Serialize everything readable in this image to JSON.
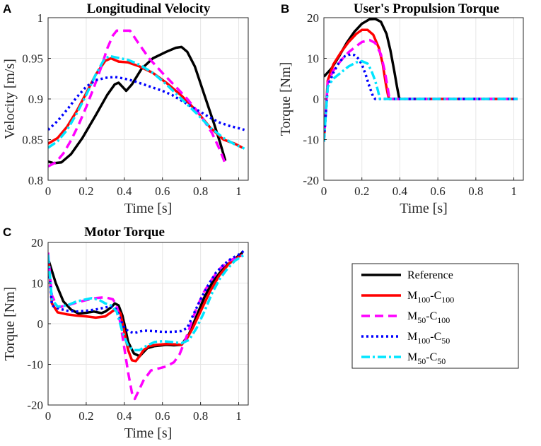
{
  "chart_data": [
    {
      "type": "line",
      "panel_letter": "A",
      "title": "Longitudinal Velocity",
      "xlabel": "Time [s]",
      "ylabel": "Velocity [m/s]",
      "xlim": [
        0,
        1.05
      ],
      "ylim": [
        0.8,
        1.0
      ],
      "xticks": [
        0,
        0.2,
        0.4,
        0.6,
        0.8,
        1
      ],
      "xtick_labels": [
        "0",
        "0.2",
        "0.4",
        "0.6",
        "0.8",
        "1"
      ],
      "yticks": [
        0.8,
        0.85,
        0.9,
        0.95,
        1.0
      ],
      "ytick_labels": [
        "0.8",
        "0.85",
        "0.9",
        "0.95",
        "1"
      ],
      "grid": true,
      "series": [
        {
          "name": "Reference",
          "x": [
            0,
            0.03,
            0.07,
            0.12,
            0.18,
            0.25,
            0.31,
            0.35,
            0.37,
            0.39,
            0.41,
            0.44,
            0.49,
            0.55,
            0.62,
            0.67,
            0.7,
            0.73,
            0.77,
            0.82,
            0.87,
            0.9,
            0.93
          ],
          "y": [
            0.823,
            0.821,
            0.822,
            0.832,
            0.852,
            0.88,
            0.905,
            0.918,
            0.92,
            0.915,
            0.91,
            0.918,
            0.937,
            0.95,
            0.958,
            0.963,
            0.964,
            0.958,
            0.94,
            0.905,
            0.87,
            0.848,
            0.824
          ]
        },
        {
          "name": "M100-C100",
          "x": [
            0,
            0.05,
            0.1,
            0.15,
            0.2,
            0.25,
            0.3,
            0.33,
            0.37,
            0.42,
            0.48,
            0.55,
            0.62,
            0.7,
            0.78,
            0.85,
            0.92,
            0.98,
            1.02
          ],
          "y": [
            0.845,
            0.852,
            0.866,
            0.885,
            0.907,
            0.93,
            0.947,
            0.95,
            0.946,
            0.945,
            0.94,
            0.932,
            0.92,
            0.904,
            0.885,
            0.865,
            0.85,
            0.845,
            0.84
          ]
        },
        {
          "name": "M50-C100",
          "x": [
            0,
            0.04,
            0.08,
            0.12,
            0.16,
            0.2,
            0.24,
            0.28,
            0.31,
            0.34,
            0.36,
            0.39,
            0.43,
            0.47,
            0.53,
            0.6,
            0.67,
            0.73,
            0.8,
            0.86,
            0.9,
            0.93
          ],
          "y": [
            0.817,
            0.822,
            0.833,
            0.849,
            0.868,
            0.89,
            0.914,
            0.94,
            0.962,
            0.978,
            0.984,
            0.984,
            0.984,
            0.97,
            0.95,
            0.932,
            0.915,
            0.9,
            0.88,
            0.858,
            0.838,
            0.82
          ]
        },
        {
          "name": "M100-C50",
          "x": [
            0,
            0.05,
            0.1,
            0.15,
            0.2,
            0.25,
            0.3,
            0.35,
            0.4,
            0.45,
            0.5,
            0.55,
            0.6,
            0.65,
            0.7,
            0.75,
            0.8,
            0.85,
            0.9,
            0.95,
            1.0,
            1.03
          ],
          "y": [
            0.862,
            0.873,
            0.887,
            0.902,
            0.915,
            0.923,
            0.926,
            0.927,
            0.925,
            0.922,
            0.918,
            0.914,
            0.91,
            0.905,
            0.898,
            0.891,
            0.884,
            0.877,
            0.871,
            0.867,
            0.864,
            0.862
          ]
        },
        {
          "name": "M50-C50",
          "x": [
            0,
            0.05,
            0.1,
            0.15,
            0.2,
            0.25,
            0.29,
            0.32,
            0.36,
            0.42,
            0.48,
            0.55,
            0.62,
            0.7,
            0.78,
            0.85,
            0.92,
            0.98,
            1.03
          ],
          "y": [
            0.84,
            0.848,
            0.862,
            0.882,
            0.905,
            0.93,
            0.947,
            0.953,
            0.951,
            0.948,
            0.942,
            0.932,
            0.918,
            0.9,
            0.882,
            0.865,
            0.852,
            0.844,
            0.839
          ]
        }
      ]
    },
    {
      "type": "line",
      "panel_letter": "B",
      "title": "User's Propulsion Torque",
      "xlabel": "Time [s]",
      "ylabel": "Torque [Nm]",
      "xlim": [
        0,
        1.05
      ],
      "ylim": [
        -20,
        20
      ],
      "xticks": [
        0,
        0.2,
        0.4,
        0.6,
        0.8,
        1
      ],
      "xtick_labels": [
        "0",
        "0.2",
        "0.4",
        "0.6",
        "0.8",
        "1"
      ],
      "yticks": [
        -20,
        -10,
        0,
        10,
        20
      ],
      "ytick_labels": [
        "-20",
        "-10",
        "0",
        "10",
        "20"
      ],
      "grid": true,
      "series": [
        {
          "name": "Reference",
          "x": [
            0,
            0.04,
            0.08,
            0.12,
            0.16,
            0.2,
            0.24,
            0.27,
            0.3,
            0.33,
            0.35,
            0.37,
            0.385,
            0.395,
            0.4
          ],
          "y": [
            5.5,
            7.5,
            10.5,
            13.8,
            16.5,
            18.5,
            19.6,
            19.7,
            19,
            16,
            12,
            7,
            3,
            0.5,
            0
          ]
        },
        {
          "name": "M100-C100",
          "x": [
            0,
            0.02,
            0.05,
            0.09,
            0.13,
            0.17,
            0.2,
            0.23,
            0.26,
            0.29,
            0.31,
            0.325,
            0.335,
            0.34,
            0.345,
            1.02
          ],
          "y": [
            -10.5,
            4.5,
            8.5,
            11.5,
            14,
            16,
            17,
            17,
            15.8,
            12.5,
            8.5,
            4,
            1.5,
            0.5,
            0,
            0
          ]
        },
        {
          "name": "M50-C100",
          "x": [
            0,
            0.02,
            0.05,
            0.09,
            0.13,
            0.17,
            0.2,
            0.24,
            0.27,
            0.3,
            0.32,
            0.335,
            0.345,
            1.02
          ],
          "y": [
            -10.5,
            4,
            7,
            9.5,
            11.5,
            13,
            14,
            14.5,
            13.8,
            11,
            7,
            3,
            0,
            0
          ]
        },
        {
          "name": "M100-C50",
          "x": [
            0,
            0.02,
            0.05,
            0.08,
            0.11,
            0.14,
            0.16,
            0.18,
            0.2,
            0.22,
            0.24,
            0.26,
            0.27,
            1.02
          ],
          "y": [
            -10.5,
            3,
            6.5,
            9,
            10.5,
            11,
            10.8,
            10,
            8.5,
            6,
            3,
            0.5,
            0,
            0
          ]
        },
        {
          "name": "M50-C50",
          "x": [
            0,
            0.02,
            0.05,
            0.09,
            0.13,
            0.17,
            0.2,
            0.23,
            0.25,
            0.27,
            0.285,
            0.295,
            1.02
          ],
          "y": [
            -10.5,
            3,
            5,
            6.5,
            8,
            9,
            9.3,
            8.7,
            7,
            4.5,
            2,
            0,
            0
          ]
        }
      ]
    },
    {
      "type": "line",
      "panel_letter": "C",
      "title": "Motor Torque",
      "xlabel": "Time [s]",
      "ylabel": "Torque [Nm]",
      "xlim": [
        0,
        1.05
      ],
      "ylim": [
        -20,
        20
      ],
      "xticks": [
        0,
        0.2,
        0.4,
        0.6,
        0.8,
        1
      ],
      "xtick_labels": [
        "0",
        "0.2",
        "0.4",
        "0.6",
        "0.8",
        "1"
      ],
      "yticks": [
        -20,
        -10,
        0,
        10,
        20
      ],
      "ytick_labels": [
        "-20",
        "-10",
        "0",
        "10",
        "20"
      ],
      "grid": true,
      "series": [
        {
          "name": "Reference",
          "x": [
            0,
            0.04,
            0.08,
            0.12,
            0.16,
            0.2,
            0.24,
            0.28,
            0.3,
            0.33,
            0.35,
            0.37,
            0.39,
            0.4,
            0.42,
            0.45,
            0.48,
            0.52,
            0.56,
            0.62,
            0.66,
            0.7,
            0.74,
            0.78,
            0.82,
            0.86,
            0.9,
            0.94,
            0.98,
            1.02
          ],
          "y": [
            16,
            10,
            5.5,
            3.5,
            2.5,
            2.7,
            3,
            2.6,
            3,
            4,
            5,
            4.5,
            2,
            0,
            -4.5,
            -7.3,
            -8,
            -6,
            -5.5,
            -5.2,
            -5.3,
            -5.2,
            -2.5,
            2,
            6.5,
            10,
            12.5,
            14.5,
            16,
            17.5
          ]
        },
        {
          "name": "M100-C100",
          "x": [
            0,
            0.02,
            0.05,
            0.1,
            0.15,
            0.2,
            0.25,
            0.3,
            0.33,
            0.36,
            0.38,
            0.4,
            0.42,
            0.44,
            0.46,
            0.48,
            0.5,
            0.53,
            0.57,
            0.62,
            0.67,
            0.7,
            0.73,
            0.76,
            0.8,
            0.85,
            0.9,
            0.95,
            1.0,
            1.02
          ],
          "y": [
            17,
            5,
            2.8,
            2.3,
            2,
            1.8,
            1.5,
            1.8,
            2.8,
            3.8,
            2.5,
            -2,
            -6.5,
            -9,
            -9.2,
            -8,
            -6.5,
            -5.5,
            -5.2,
            -5,
            -5.1,
            -5.2,
            -3.5,
            -1,
            3,
            8,
            12,
            14.8,
            16.5,
            17
          ]
        },
        {
          "name": "M50-C100",
          "x": [
            0,
            0.02,
            0.05,
            0.1,
            0.15,
            0.2,
            0.25,
            0.3,
            0.34,
            0.36,
            0.38,
            0.4,
            0.42,
            0.44,
            0.455,
            0.47,
            0.5,
            0.54,
            0.58,
            0.62,
            0.66,
            0.69,
            0.72,
            0.75,
            0.78,
            0.82,
            0.86,
            0.9,
            0.95,
            1.0,
            1.02
          ],
          "y": [
            17.5,
            7,
            4,
            4.5,
            5.2,
            5.8,
            6.3,
            6.5,
            6,
            4.5,
            0,
            -6,
            -12,
            -17,
            -18.5,
            -17,
            -14,
            -11.5,
            -11,
            -10.5,
            -9.5,
            -7.5,
            -4,
            0,
            4,
            8,
            11,
            13.5,
            15.5,
            16.5,
            16.8
          ]
        },
        {
          "name": "M100-C50",
          "x": [
            0,
            0.02,
            0.05,
            0.1,
            0.15,
            0.2,
            0.25,
            0.3,
            0.33,
            0.36,
            0.38,
            0.4,
            0.42,
            0.45,
            0.5,
            0.55,
            0.6,
            0.65,
            0.7,
            0.73,
            0.76,
            0.8,
            0.84,
            0.88,
            0.92,
            0.96,
            1.0,
            1.03
          ],
          "y": [
            16.5,
            4.5,
            3.8,
            3.2,
            3,
            3.2,
            3.5,
            4,
            4.3,
            3.5,
            1,
            -1,
            -1.8,
            -2.3,
            -1.7,
            -1.8,
            -2,
            -2,
            -1.8,
            -1,
            2,
            6,
            9.5,
            12.5,
            14.5,
            16,
            17,
            18
          ]
        },
        {
          "name": "M50-C50",
          "x": [
            0,
            0.02,
            0.05,
            0.1,
            0.15,
            0.2,
            0.23,
            0.27,
            0.3,
            0.33,
            0.36,
            0.39,
            0.42,
            0.45,
            0.48,
            0.52,
            0.56,
            0.6,
            0.65,
            0.7,
            0.74,
            0.78,
            0.82,
            0.86,
            0.9,
            0.94,
            0.98,
            1.03
          ],
          "y": [
            17,
            6,
            4.2,
            4.5,
            5.5,
            6,
            6.3,
            5.8,
            5,
            4.5,
            3,
            -2,
            -5.5,
            -6.5,
            -6.5,
            -5.3,
            -4.5,
            -4.3,
            -4.5,
            -4.8,
            -4,
            -1,
            3,
            7.5,
            11,
            13.5,
            15.5,
            17
          ]
        }
      ]
    }
  ],
  "legend": {
    "placement": "bottom-right",
    "entries": [
      {
        "name": "Reference",
        "label_main": "Reference",
        "sub1": "",
        "mid": "",
        "sub2": "",
        "color": "#000000",
        "dash": "solid"
      },
      {
        "name": "M100-C100",
        "label_main": "M",
        "sub1": "100",
        "mid": "-C",
        "sub2": "100",
        "color": "#ff0000",
        "dash": "solid"
      },
      {
        "name": "M50-C100",
        "label_main": "M",
        "sub1": "50",
        "mid": "-C",
        "sub2": "100",
        "color": "#ff00ff",
        "dash": "dashed"
      },
      {
        "name": "M100-C50",
        "label_main": "M",
        "sub1": "100",
        "mid": "-C",
        "sub2": "50",
        "color": "#0000ff",
        "dash": "dotted"
      },
      {
        "name": "M50-C50",
        "label_main": "M",
        "sub1": "50",
        "mid": "-C",
        "sub2": "50",
        "color": "#00e5ff",
        "dash": "dashdot"
      }
    ]
  },
  "colors": {
    "Reference": "#000000",
    "M100-C100": "#ff0000",
    "M50-C100": "#ff00ff",
    "M100-C50": "#0000ff",
    "M50-C50": "#00e5ff",
    "grid": "#e6e6e6",
    "axis": "#262626"
  }
}
